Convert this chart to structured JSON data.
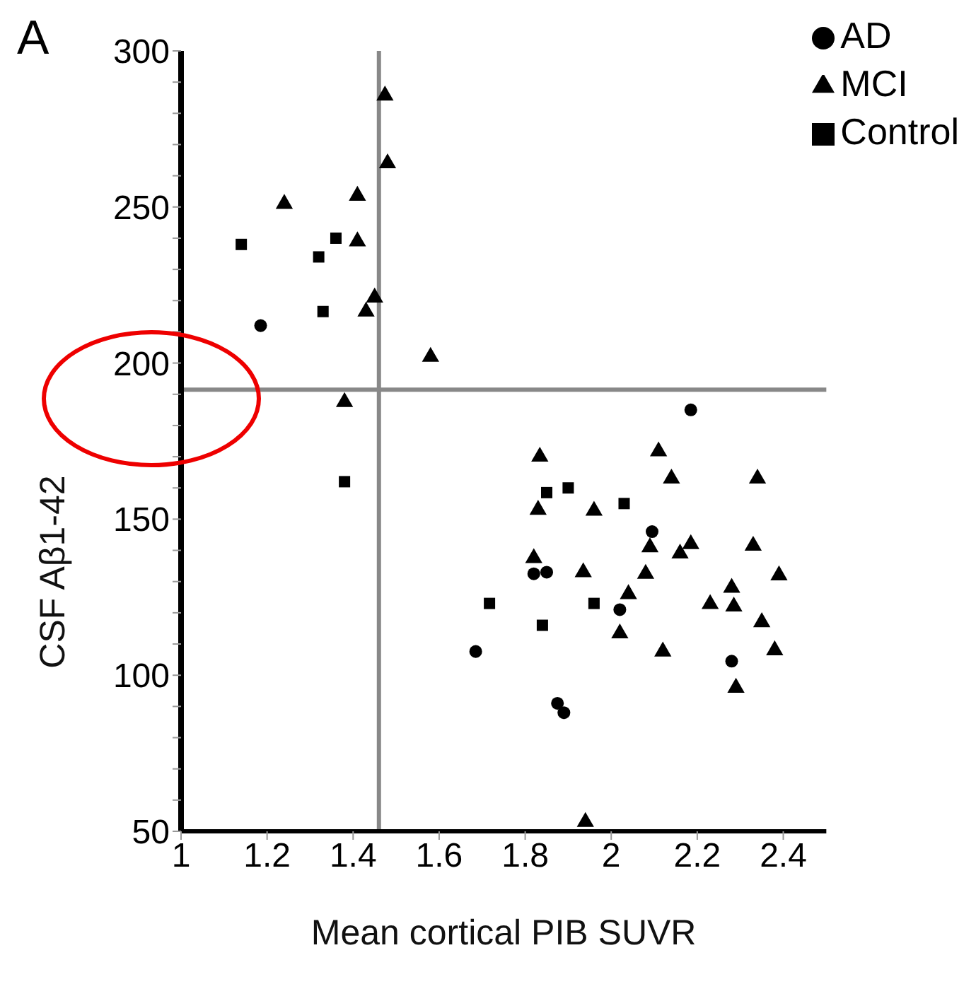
{
  "chart_data": {
    "type": "scatter",
    "xlabel": "Mean cortical PIB SUVR",
    "ylabel": "CSF Aβ1-42",
    "annotations": [
      "A"
    ],
    "xlim": [
      1,
      2.5
    ],
    "xticks": [
      1,
      1.2,
      1.4,
      1.6,
      1.8,
      2,
      2.2,
      2.4
    ],
    "ylim": [
      50,
      300
    ],
    "yticks": [
      50,
      {
        "value": 60,
        "label": null
      },
      {
        "value": 70,
        "label": null
      },
      {
        "value": 80,
        "label": null
      },
      {
        "value": 90,
        "label": null
      },
      100,
      {
        "value": 110,
        "label": null
      },
      {
        "value": 120,
        "label": null
      },
      {
        "value": 130,
        "label": null
      },
      {
        "value": 140,
        "label": null
      },
      150,
      {
        "value": 160,
        "label": null
      },
      {
        "value": 170,
        "label": null
      },
      {
        "value": 180,
        "label": null
      },
      {
        "value": 190,
        "label": null
      },
      200,
      {
        "value": 210,
        "label": null
      },
      {
        "value": 220,
        "label": null
      },
      {
        "value": 230,
        "label": null
      },
      {
        "value": 240,
        "label": null
      },
      250,
      {
        "value": 260,
        "label": null
      },
      {
        "value": 270,
        "label": null
      },
      {
        "value": 280,
        "label": null
      },
      {
        "value": 290,
        "label": null
      },
      300
    ],
    "grid": false,
    "legend": "top right",
    "ref_lines": [
      {
        "axis": "x",
        "value": 1.46,
        "color": "#888888"
      },
      {
        "axis": "y",
        "value": 191.5,
        "color": "#888888"
      }
    ],
    "series": [
      {
        "name": "AD",
        "color": "#000000",
        "marker": "circle",
        "x": [
          1.185,
          2.185,
          2.095,
          1.82,
          1.85,
          2.02,
          1.685,
          2.28,
          1.875,
          1.89
        ],
        "values": [
          212,
          185,
          146,
          132.5,
          133,
          121,
          107.6,
          104.5,
          91,
          88
        ]
      },
      {
        "name": "MCI",
        "color": "#000000",
        "marker": "triangle",
        "x": [
          1.474,
          1.48,
          1.41,
          1.24,
          1.41,
          1.45,
          1.43,
          1.58,
          1.38,
          1.834,
          2.11,
          2.14,
          2.34,
          1.83,
          1.96,
          2.09,
          2.16,
          2.185,
          2.33,
          1.82,
          1.935,
          2.08,
          2.39,
          2.28,
          2.04,
          2.23,
          2.285,
          2.35,
          2.02,
          2.12,
          2.38,
          2.29,
          1.94
        ],
        "values": [
          285.7,
          264,
          253.6,
          251,
          239,
          221,
          216.5,
          202,
          187.5,
          170,
          171.7,
          163,
          163,
          153,
          152.7,
          141,
          139,
          142,
          141.5,
          137.5,
          133,
          132.5,
          132,
          128,
          126,
          122.8,
          122,
          117,
          113.4,
          107.6,
          108,
          96,
          53
        ]
      },
      {
        "name": "Control",
        "color": "#000000",
        "marker": "square",
        "x": [
          1.14,
          1.36,
          1.32,
          1.33,
          1.38,
          1.85,
          1.9,
          2.03,
          1.717,
          1.96,
          1.84
        ],
        "values": [
          238,
          240,
          234,
          216.5,
          162,
          158.5,
          160,
          155,
          123,
          123,
          116
        ]
      }
    ]
  }
}
